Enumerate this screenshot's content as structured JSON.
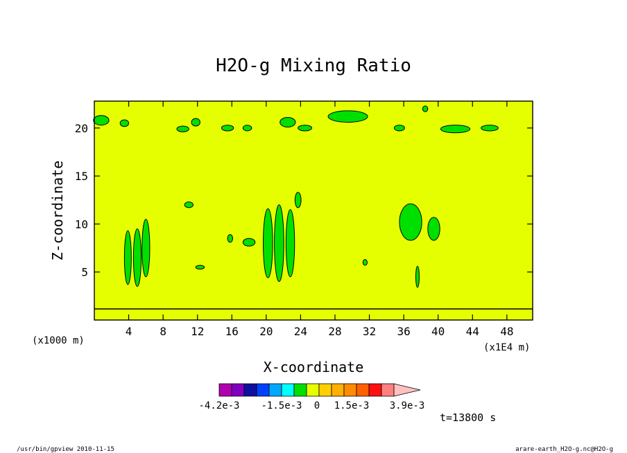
{
  "chart_data": {
    "type": "heatmap",
    "title": "H2O-g Mixing Ratio",
    "xlabel": "X-coordinate",
    "ylabel": "Z-coordinate",
    "x_unit_left": "(x1000 m)",
    "x_unit_right": "(x1E4 m)",
    "xlim": [
      0,
      51
    ],
    "ylim": [
      0,
      22.8
    ],
    "x_ticks": [
      4,
      8,
      12,
      16,
      20,
      24,
      28,
      32,
      36,
      40,
      44,
      48
    ],
    "y_ticks": [
      5,
      10,
      15,
      20
    ],
    "background_value": "0",
    "colorbar": {
      "colors": [
        "#b000b0",
        "#8000c0",
        "#1010a0",
        "#0040ff",
        "#00a8ff",
        "#00ffff",
        "#00e000",
        "#e6ff00",
        "#ffd000",
        "#ffb000",
        "#ff8c00",
        "#ff6000",
        "#ff1010",
        "#ff8080",
        "#ffc0c0"
      ],
      "labels": [
        "-4.2e-3",
        "-1.5e-3",
        "0",
        "1.5e-3",
        "3.9e-3"
      ]
    },
    "time_label": "t=13800 s",
    "footer_left": "/usr/bin/gpview  2010-11-15",
    "footer_right": "arare-earth_H2O-g.nc@H2O-g",
    "regions": [
      {
        "value": "green",
        "x": 5.0,
        "z": 6.5,
        "rx": 0.45,
        "rz": 3.0
      },
      {
        "value": "green",
        "x": 3.9,
        "z": 6.5,
        "rx": 0.4,
        "rz": 2.8
      },
      {
        "value": "green",
        "x": 6.0,
        "z": 7.5,
        "rx": 0.45,
        "rz": 3.0
      },
      {
        "value": "green",
        "x": 20.2,
        "z": 8.0,
        "rx": 0.55,
        "rz": 3.6
      },
      {
        "value": "green",
        "x": 21.5,
        "z": 8.0,
        "rx": 0.55,
        "rz": 4.0
      },
      {
        "value": "green",
        "x": 22.8,
        "z": 8.0,
        "rx": 0.5,
        "rz": 3.5
      },
      {
        "value": "green",
        "x": 23.7,
        "z": 12.5,
        "rx": 0.35,
        "rz": 0.8
      },
      {
        "value": "green",
        "x": 36.8,
        "z": 10.2,
        "rx": 1.3,
        "rz": 1.9
      },
      {
        "value": "green",
        "x": 39.5,
        "z": 9.5,
        "rx": 0.7,
        "rz": 1.2
      },
      {
        "value": "green",
        "x": 37.6,
        "z": 4.5,
        "rx": 0.2,
        "rz": 1.1
      },
      {
        "value": "green",
        "x": 18.0,
        "z": 8.1,
        "rx": 0.7,
        "rz": 0.4
      },
      {
        "value": "green",
        "x": 15.8,
        "z": 8.5,
        "rx": 0.3,
        "rz": 0.4
      },
      {
        "value": "green",
        "x": 11.0,
        "z": 12.0,
        "rx": 0.5,
        "rz": 0.3
      },
      {
        "value": "green",
        "x": 12.3,
        "z": 5.5,
        "rx": 0.5,
        "rz": 0.2
      },
      {
        "value": "green",
        "x": 31.5,
        "z": 6.0,
        "rx": 0.25,
        "rz": 0.3
      },
      {
        "value": "green",
        "x": 29.5,
        "z": 21.2,
        "rx": 2.3,
        "rz": 0.6
      },
      {
        "value": "green",
        "x": 22.5,
        "z": 20.6,
        "rx": 0.9,
        "rz": 0.5
      },
      {
        "value": "green",
        "x": 11.8,
        "z": 20.6,
        "rx": 0.5,
        "rz": 0.4
      },
      {
        "value": "green",
        "x": 10.3,
        "z": 19.9,
        "rx": 0.7,
        "rz": 0.3
      },
      {
        "value": "green",
        "x": 0.8,
        "z": 20.8,
        "rx": 0.9,
        "rz": 0.5
      },
      {
        "value": "green",
        "x": 3.5,
        "z": 20.5,
        "rx": 0.5,
        "rz": 0.35
      },
      {
        "value": "green",
        "x": 15.5,
        "z": 20.0,
        "rx": 0.7,
        "rz": 0.3
      },
      {
        "value": "green",
        "x": 17.8,
        "z": 20.0,
        "rx": 0.5,
        "rz": 0.3
      },
      {
        "value": "green",
        "x": 24.5,
        "z": 20.0,
        "rx": 0.8,
        "rz": 0.3
      },
      {
        "value": "green",
        "x": 35.5,
        "z": 20.0,
        "rx": 0.6,
        "rz": 0.3
      },
      {
        "value": "green",
        "x": 42.0,
        "z": 19.9,
        "rx": 1.7,
        "rz": 0.4
      },
      {
        "value": "green",
        "x": 46.0,
        "z": 20.0,
        "rx": 1.0,
        "rz": 0.3
      },
      {
        "value": "green",
        "x": 38.5,
        "z": 22.0,
        "rx": 0.3,
        "rz": 0.3
      }
    ]
  }
}
